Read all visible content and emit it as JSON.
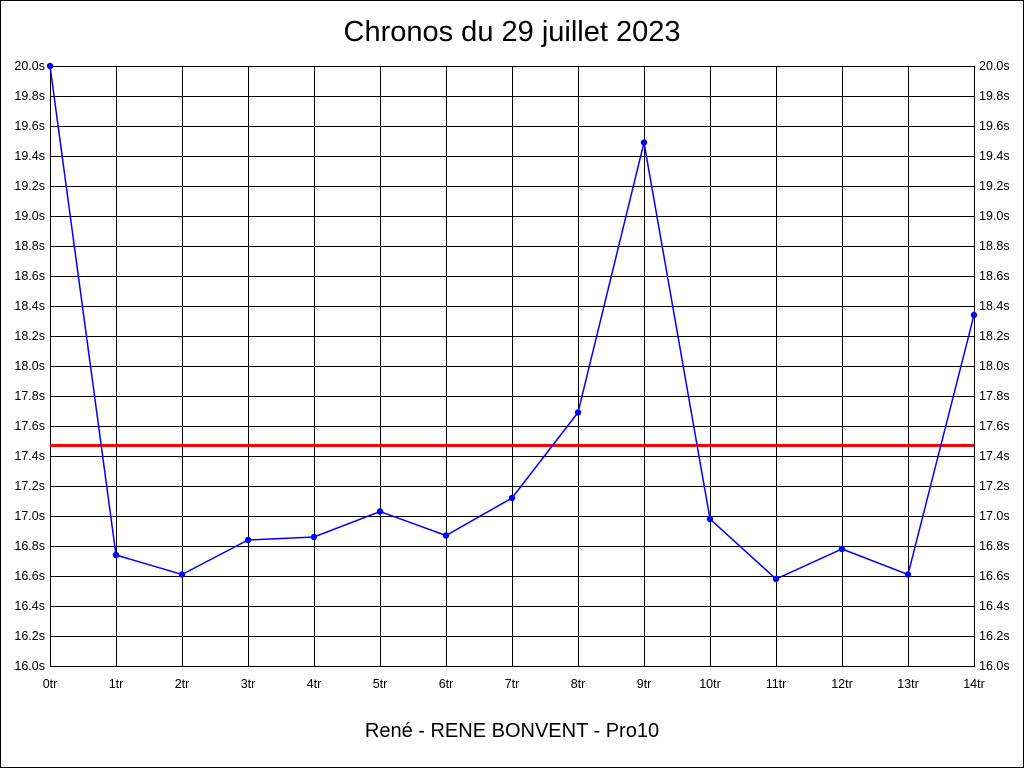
{
  "chart_data": {
    "type": "line",
    "title": "Chronos du 29 juillet 2023",
    "subtitle": "René - RENE BONVENT - Pro10",
    "x": [
      "0tr",
      "1tr",
      "2tr",
      "3tr",
      "4tr",
      "5tr",
      "6tr",
      "7tr",
      "8tr",
      "9tr",
      "10tr",
      "11tr",
      "12tr",
      "13tr",
      "14tr"
    ],
    "series": [
      {
        "color": "#0000ff",
        "values": [
          20.0,
          16.74,
          16.61,
          16.84,
          16.86,
          17.03,
          16.87,
          17.12,
          17.69,
          19.49,
          16.98,
          16.58,
          16.78,
          16.61,
          18.34
        ]
      }
    ],
    "reference_line": {
      "value": 17.47,
      "color": "#ff0000"
    },
    "ylim": [
      16.0,
      20.0
    ],
    "y_ticks": [
      "16.0s",
      "16.2s",
      "16.4s",
      "16.6s",
      "16.8s",
      "17.0s",
      "17.2s",
      "17.4s",
      "17.6s",
      "17.8s",
      "18.0s",
      "18.2s",
      "18.4s",
      "18.6s",
      "18.8s",
      "19.0s",
      "19.2s",
      "19.4s",
      "19.6s",
      "19.8s",
      "20.0s"
    ],
    "grid": true,
    "y_axis_both_sides": true
  }
}
